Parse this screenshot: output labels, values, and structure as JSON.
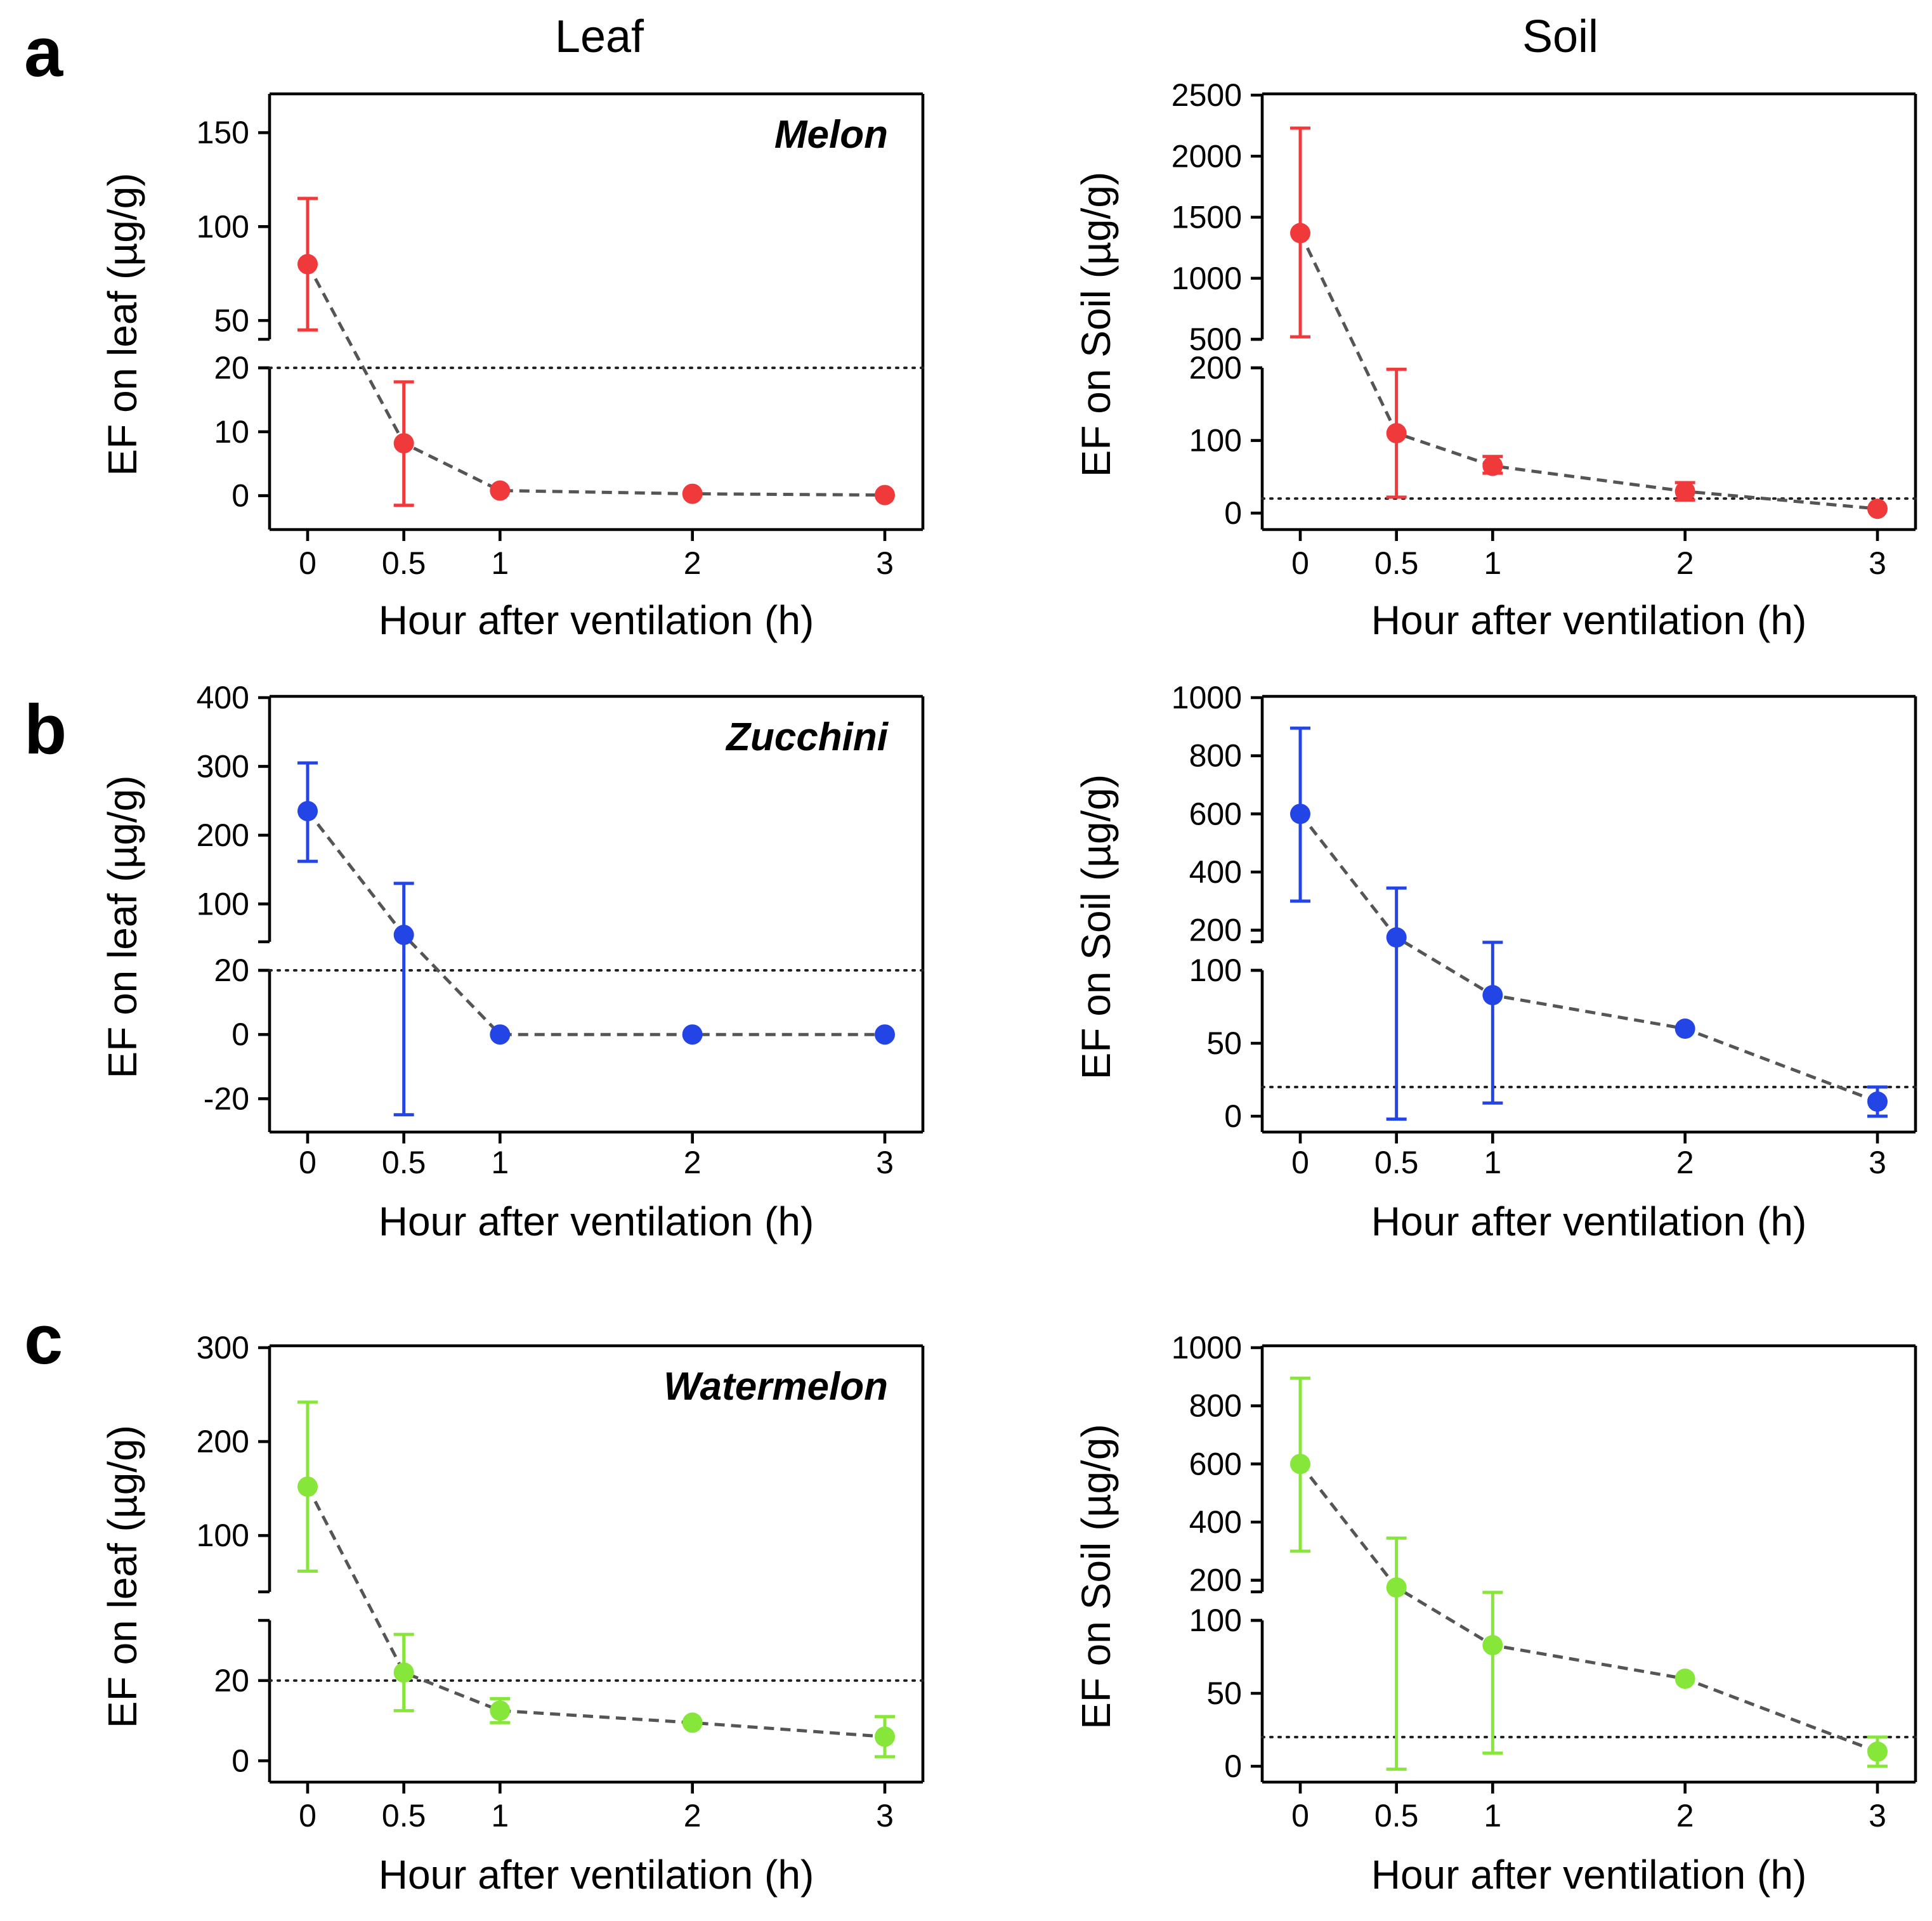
{
  "figure": {
    "column_titles": [
      "Leaf",
      "Soil"
    ],
    "colors": {
      "a": "#f0393b",
      "b": "#2445e6",
      "c": "#86e639"
    }
  },
  "chart_data": [
    {
      "id": "a-leaf",
      "type": "scatter",
      "panel": "a",
      "crop": "Melon",
      "column": "Leaf",
      "color": "#f0393b",
      "xlabel": "Hour after ventilation (h)",
      "ylabel": "EF on leaf (µg/g)",
      "x_ticks": [
        "0",
        "0.5",
        "1",
        "2",
        "3"
      ],
      "y_axis": {
        "break": true,
        "lower": {
          "range": [
            -5,
            20
          ],
          "ticks": [
            "0",
            "10",
            "20"
          ]
        },
        "upper": {
          "range": [
            40,
            170
          ],
          "ticks": [
            "50",
            "100",
            "150"
          ]
        }
      },
      "threshold": 20,
      "series": [
        {
          "name": "Melon leaf",
          "points": [
            {
              "x": 0,
              "y": 80,
              "lo": 45,
              "hi": 115
            },
            {
              "x": 0.5,
              "y": 8.2,
              "lo": -1.5,
              "hi": 17.8
            },
            {
              "x": 1,
              "y": 0.8,
              "lo": 0.8,
              "hi": 0.8
            },
            {
              "x": 2,
              "y": 0.3,
              "lo": 0.3,
              "hi": 0.3
            },
            {
              "x": 3,
              "y": 0.1,
              "lo": 0.1,
              "hi": 0.1
            }
          ]
        }
      ]
    },
    {
      "id": "a-soil",
      "type": "scatter",
      "panel": "a",
      "crop": "",
      "column": "Soil",
      "color": "#f0393b",
      "xlabel": "Hour after ventilation (h)",
      "ylabel": "EF on Soil (µg/g)",
      "x_ticks": [
        "0",
        "0.5",
        "1",
        "2",
        "3"
      ],
      "y_axis": {
        "break": true,
        "lower": {
          "range": [
            -20,
            200
          ],
          "ticks": [
            "0",
            "100",
            "200"
          ]
        },
        "upper": {
          "range": [
            500,
            2500
          ],
          "ticks": [
            "500",
            "1000",
            "1500",
            "2000",
            "2500"
          ]
        }
      },
      "threshold": 20,
      "series": [
        {
          "name": "Melon soil",
          "points": [
            {
              "x": 0,
              "y": 1370,
              "lo": 520,
              "hi": 2230
            },
            {
              "x": 0.5,
              "y": 110,
              "lo": 22,
              "hi": 198
            },
            {
              "x": 1,
              "y": 65,
              "lo": 55,
              "hi": 78
            },
            {
              "x": 2,
              "y": 30,
              "lo": 18,
              "hi": 42
            },
            {
              "x": 3,
              "y": 6,
              "lo": 6,
              "hi": 6
            }
          ]
        }
      ]
    },
    {
      "id": "b-leaf",
      "type": "scatter",
      "panel": "b",
      "crop": "Zucchini",
      "column": "Leaf",
      "color": "#2445e6",
      "xlabel": "Hour after ventilation (h)",
      "ylabel": "EF on leaf (µg/g)",
      "x_ticks": [
        "0",
        "0.5",
        "1",
        "2",
        "3"
      ],
      "y_axis": {
        "break": true,
        "lower": {
          "range": [
            -30,
            20
          ],
          "ticks": [
            "-20",
            "0",
            "20"
          ]
        },
        "upper": {
          "range": [
            45,
            400
          ],
          "ticks": [
            "100",
            "200",
            "300",
            "400"
          ]
        }
      },
      "threshold": 20,
      "series": [
        {
          "name": "Zucchini leaf",
          "points": [
            {
              "x": 0,
              "y": 235,
              "lo": 162,
              "hi": 305
            },
            {
              "x": 0.5,
              "y": 55,
              "lo": -25,
              "hi": 130
            },
            {
              "x": 1,
              "y": 0,
              "lo": 0,
              "hi": 0
            },
            {
              "x": 2,
              "y": 0,
              "lo": 0,
              "hi": 0
            },
            {
              "x": 3,
              "y": 0,
              "lo": 0,
              "hi": 0
            }
          ]
        }
      ]
    },
    {
      "id": "b-soil",
      "type": "scatter",
      "panel": "b",
      "crop": "",
      "column": "Soil",
      "color": "#2445e6",
      "xlabel": "Hour after ventilation (h)",
      "ylabel": "EF on Soil (µg/g)",
      "x_ticks": [
        "0",
        "0.5",
        "1",
        "2",
        "3"
      ],
      "y_axis": {
        "break": true,
        "lower": {
          "range": [
            -10,
            100
          ],
          "ticks": [
            "0",
            "50",
            "100"
          ]
        },
        "upper": {
          "range": [
            160,
            1000
          ],
          "ticks": [
            "200",
            "400",
            "600",
            "800",
            "1000"
          ]
        }
      },
      "threshold": 20,
      "series": [
        {
          "name": "Zucchini soil",
          "points": [
            {
              "x": 0,
              "y": 600,
              "lo": 300,
              "hi": 895
            },
            {
              "x": 0.5,
              "y": 175,
              "lo": -2,
              "hi": 345
            },
            {
              "x": 1,
              "y": 83,
              "lo": 9,
              "hi": 158
            },
            {
              "x": 2,
              "y": 60,
              "lo": 60,
              "hi": 60
            },
            {
              "x": 3,
              "y": 10,
              "lo": 0,
              "hi": 20
            }
          ]
        }
      ]
    },
    {
      "id": "c-leaf",
      "type": "scatter",
      "panel": "c",
      "crop": "Watermelon",
      "column": "Leaf",
      "color": "#86e639",
      "xlabel": "Hour after ventilation (h)",
      "ylabel": "EF on leaf (µg/g)",
      "x_ticks": [
        "0",
        "0.5",
        "1",
        "2",
        "3"
      ],
      "y_axis": {
        "break": true,
        "lower": {
          "range": [
            -5,
            35
          ],
          "ticks": [
            "0",
            "20"
          ]
        },
        "upper": {
          "range": [
            40,
            300
          ],
          "ticks": [
            "100",
            "200",
            "300"
          ]
        }
      },
      "threshold": 20,
      "series": [
        {
          "name": "Watermelon leaf",
          "points": [
            {
              "x": 0,
              "y": 152,
              "lo": 62,
              "hi": 242
            },
            {
              "x": 0.5,
              "y": 22,
              "lo": 12.5,
              "hi": 31.5
            },
            {
              "x": 1,
              "y": 12.5,
              "lo": 9.5,
              "hi": 15.5
            },
            {
              "x": 2,
              "y": 9.5,
              "lo": 9.5,
              "hi": 9.5
            },
            {
              "x": 3,
              "y": 6,
              "lo": 1,
              "hi": 11
            }
          ]
        }
      ]
    },
    {
      "id": "c-soil",
      "type": "scatter",
      "panel": "c",
      "crop": "",
      "column": "Soil",
      "color": "#86e639",
      "xlabel": "Hour after ventilation (h)",
      "ylabel": "EF on Soil (µg/g)",
      "x_ticks": [
        "0",
        "0.5",
        "1",
        "2",
        "3"
      ],
      "y_axis": {
        "break": true,
        "lower": {
          "range": [
            -10,
            100
          ],
          "ticks": [
            "0",
            "50",
            "100"
          ]
        },
        "upper": {
          "range": [
            160,
            1000
          ],
          "ticks": [
            "200",
            "400",
            "600",
            "800",
            "1000"
          ]
        }
      },
      "threshold": 20,
      "series": [
        {
          "name": "Watermelon soil",
          "points": [
            {
              "x": 0,
              "y": 600,
              "lo": 300,
              "hi": 895
            },
            {
              "x": 0.5,
              "y": 175,
              "lo": -2,
              "hi": 345
            },
            {
              "x": 1,
              "y": 83,
              "lo": 9,
              "hi": 158
            },
            {
              "x": 2,
              "y": 60,
              "lo": 60,
              "hi": 60
            },
            {
              "x": 3,
              "y": 10,
              "lo": 0,
              "hi": 20
            }
          ]
        }
      ]
    }
  ]
}
